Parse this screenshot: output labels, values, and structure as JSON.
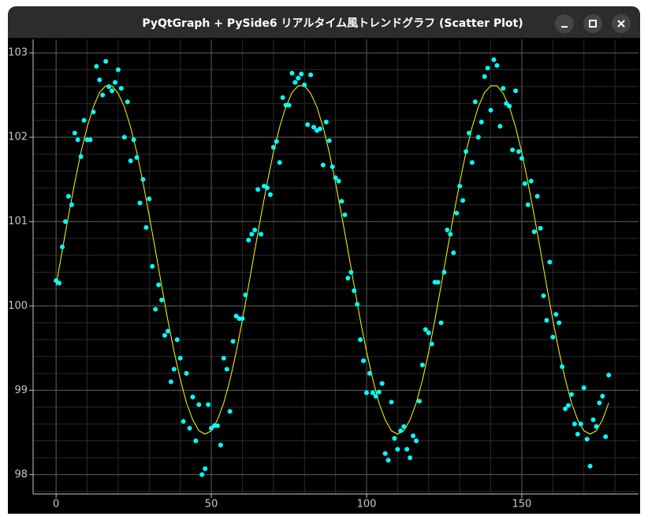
{
  "window": {
    "title": "PyQtGraph + PySide6 リアルタイム風トレンドグラフ (Scatter Plot)"
  },
  "chart_data": {
    "type": "scatter",
    "xlim": [
      -7.4,
      187.6
    ],
    "ylim": [
      97.77,
      103.16
    ],
    "xticks": [
      0,
      50,
      100,
      150
    ],
    "yticks": [
      98,
      99,
      100,
      101,
      102,
      103
    ],
    "xminor": [
      0,
      10,
      20,
      30,
      40,
      50,
      60,
      70,
      80,
      90,
      100,
      110,
      120,
      130,
      140,
      150,
      160,
      170,
      180
    ],
    "yminor": [
      97.8,
      98,
      98.2,
      98.4,
      98.6,
      98.8,
      99,
      99.2,
      99.4,
      99.6,
      99.8,
      100,
      100.2,
      100.4,
      100.6,
      100.8,
      101,
      101.2,
      101.4,
      101.6,
      101.8,
      102,
      102.2,
      102.4,
      102.6,
      102.8,
      103
    ],
    "grid": true,
    "series": [
      {
        "type": "line",
        "color": "#ffff00",
        "x": [
          0,
          2,
          4,
          6,
          8,
          10,
          12,
          14,
          16,
          18,
          20,
          22,
          24,
          26,
          28,
          30,
          32,
          34,
          36,
          38,
          40,
          42,
          44,
          46,
          48,
          50,
          52,
          54,
          56,
          58,
          60,
          62,
          64,
          66,
          68,
          70,
          72,
          74,
          76,
          78,
          80,
          82,
          84,
          86,
          88,
          90,
          92,
          94,
          96,
          98,
          100,
          102,
          104,
          106,
          108,
          110,
          112,
          114,
          116,
          118,
          120,
          122,
          124,
          126,
          128,
          130,
          132,
          134,
          136,
          138,
          140,
          142,
          144,
          146,
          148,
          150,
          152,
          154,
          156,
          158,
          160,
          162,
          164,
          166,
          168,
          170,
          172,
          174,
          176,
          178
        ],
        "values": [
          100.24,
          100.66,
          101.07,
          101.46,
          101.82,
          102.12,
          102.36,
          102.53,
          102.61,
          102.61,
          102.52,
          102.36,
          102.12,
          101.82,
          101.46,
          101.07,
          100.66,
          100.24,
          99.83,
          99.46,
          99.13,
          98.85,
          98.65,
          98.52,
          98.48,
          98.52,
          98.65,
          98.85,
          99.12,
          99.45,
          99.83,
          100.24,
          100.66,
          101.07,
          101.46,
          101.82,
          102.12,
          102.36,
          102.53,
          102.61,
          102.61,
          102.52,
          102.36,
          102.12,
          101.82,
          101.46,
          101.07,
          100.66,
          100.24,
          99.83,
          99.46,
          99.13,
          98.85,
          98.65,
          98.52,
          98.48,
          98.52,
          98.65,
          98.85,
          99.12,
          99.45,
          99.83,
          100.24,
          100.66,
          101.07,
          101.46,
          101.82,
          102.12,
          102.36,
          102.53,
          102.61,
          102.61,
          102.52,
          102.36,
          102.12,
          101.82,
          101.46,
          101.07,
          100.66,
          100.24,
          99.83,
          99.46,
          99.13,
          98.85,
          98.65,
          98.52,
          98.48,
          98.52,
          98.65,
          98.85
        ]
      },
      {
        "type": "scatter",
        "color": "#00ffff",
        "x": [
          0,
          1,
          2,
          3,
          4,
          5,
          6,
          7,
          8,
          9,
          10,
          11,
          12,
          13,
          14,
          15,
          16,
          17,
          18,
          19,
          20,
          21,
          22,
          23,
          24,
          25,
          26,
          27,
          28,
          29,
          30,
          31,
          32,
          33,
          34,
          35,
          36,
          37,
          38,
          39,
          40,
          41,
          42,
          43,
          44,
          45,
          46,
          47,
          48,
          49,
          50,
          51,
          52,
          53,
          54,
          55,
          56,
          57,
          58,
          59,
          60,
          61,
          62,
          63,
          64,
          65,
          66,
          67,
          68,
          69,
          70,
          71,
          72,
          73,
          74,
          75,
          76,
          77,
          78,
          79,
          80,
          81,
          82,
          83,
          84,
          85,
          86,
          87,
          88,
          89,
          90,
          91,
          92,
          93,
          94,
          95,
          96,
          97,
          98,
          99,
          100,
          101,
          102,
          103,
          104,
          105,
          106,
          107,
          108,
          109,
          110,
          111,
          112,
          113,
          114,
          115,
          116,
          117,
          118,
          119,
          120,
          121,
          122,
          123,
          124,
          125,
          126,
          127,
          128,
          129,
          130,
          131,
          132,
          133,
          134,
          135,
          136,
          137,
          138,
          139,
          140,
          141,
          142,
          143,
          144,
          145,
          146,
          147,
          148,
          149,
          150,
          151,
          152,
          153,
          154,
          155,
          156,
          157,
          158,
          159,
          160,
          161,
          162,
          163,
          164,
          165,
          166,
          167,
          168,
          169,
          170,
          171,
          172,
          173,
          174,
          175,
          176,
          177,
          178
        ],
        "values": [
          100.3,
          100.27,
          100.7,
          101.0,
          101.3,
          101.2,
          102.05,
          101.97,
          101.77,
          102.2,
          101.97,
          101.97,
          102.3,
          102.84,
          102.68,
          102.5,
          102.9,
          102.6,
          102.55,
          102.65,
          102.8,
          102.58,
          102.0,
          102.42,
          101.72,
          101.97,
          101.76,
          101.22,
          101.5,
          100.93,
          101.27,
          100.47,
          99.96,
          100.25,
          100.07,
          99.65,
          99.7,
          99.1,
          99.25,
          99.6,
          99.38,
          98.63,
          99.2,
          98.55,
          98.92,
          98.4,
          98.83,
          98.0,
          98.07,
          98.83,
          98.55,
          98.58,
          98.58,
          98.35,
          99.38,
          99.25,
          98.75,
          99.58,
          99.88,
          99.85,
          99.85,
          100.13,
          100.78,
          100.85,
          100.9,
          101.38,
          100.85,
          101.42,
          101.4,
          101.32,
          101.88,
          101.95,
          101.7,
          102.47,
          102.38,
          102.38,
          102.76,
          102.65,
          102.7,
          102.75,
          102.62,
          102.15,
          102.74,
          102.12,
          102.08,
          102.1,
          101.67,
          102.18,
          101.96,
          101.65,
          101.52,
          101.48,
          101.24,
          101.08,
          100.33,
          100.4,
          100.18,
          100.02,
          99.6,
          99.35,
          98.97,
          99.2,
          98.97,
          98.93,
          98.98,
          99.08,
          98.25,
          98.17,
          98.86,
          98.43,
          98.3,
          98.52,
          98.57,
          98.3,
          98.2,
          98.46,
          98.4,
          98.87,
          99.3,
          99.72,
          99.68,
          99.55,
          100.28,
          100.28,
          99.8,
          100.4,
          100.9,
          100.85,
          100.63,
          101.1,
          101.42,
          101.25,
          101.83,
          102.05,
          101.7,
          102.42,
          102.0,
          102.18,
          102.72,
          102.82,
          102.32,
          102.92,
          102.85,
          102.13,
          102.58,
          102.4,
          102.37,
          101.85,
          102.55,
          101.83,
          101.75,
          101.45,
          101.2,
          101.48,
          100.88,
          101.3,
          100.92,
          100.12,
          99.83,
          100.52,
          99.63,
          99.9,
          99.8,
          99.28,
          98.78,
          98.82,
          98.95,
          98.6,
          98.48,
          98.6,
          99.03,
          98.42,
          98.1,
          98.65,
          98.57,
          98.85,
          98.93,
          98.45,
          99.18
        ]
      }
    ]
  }
}
